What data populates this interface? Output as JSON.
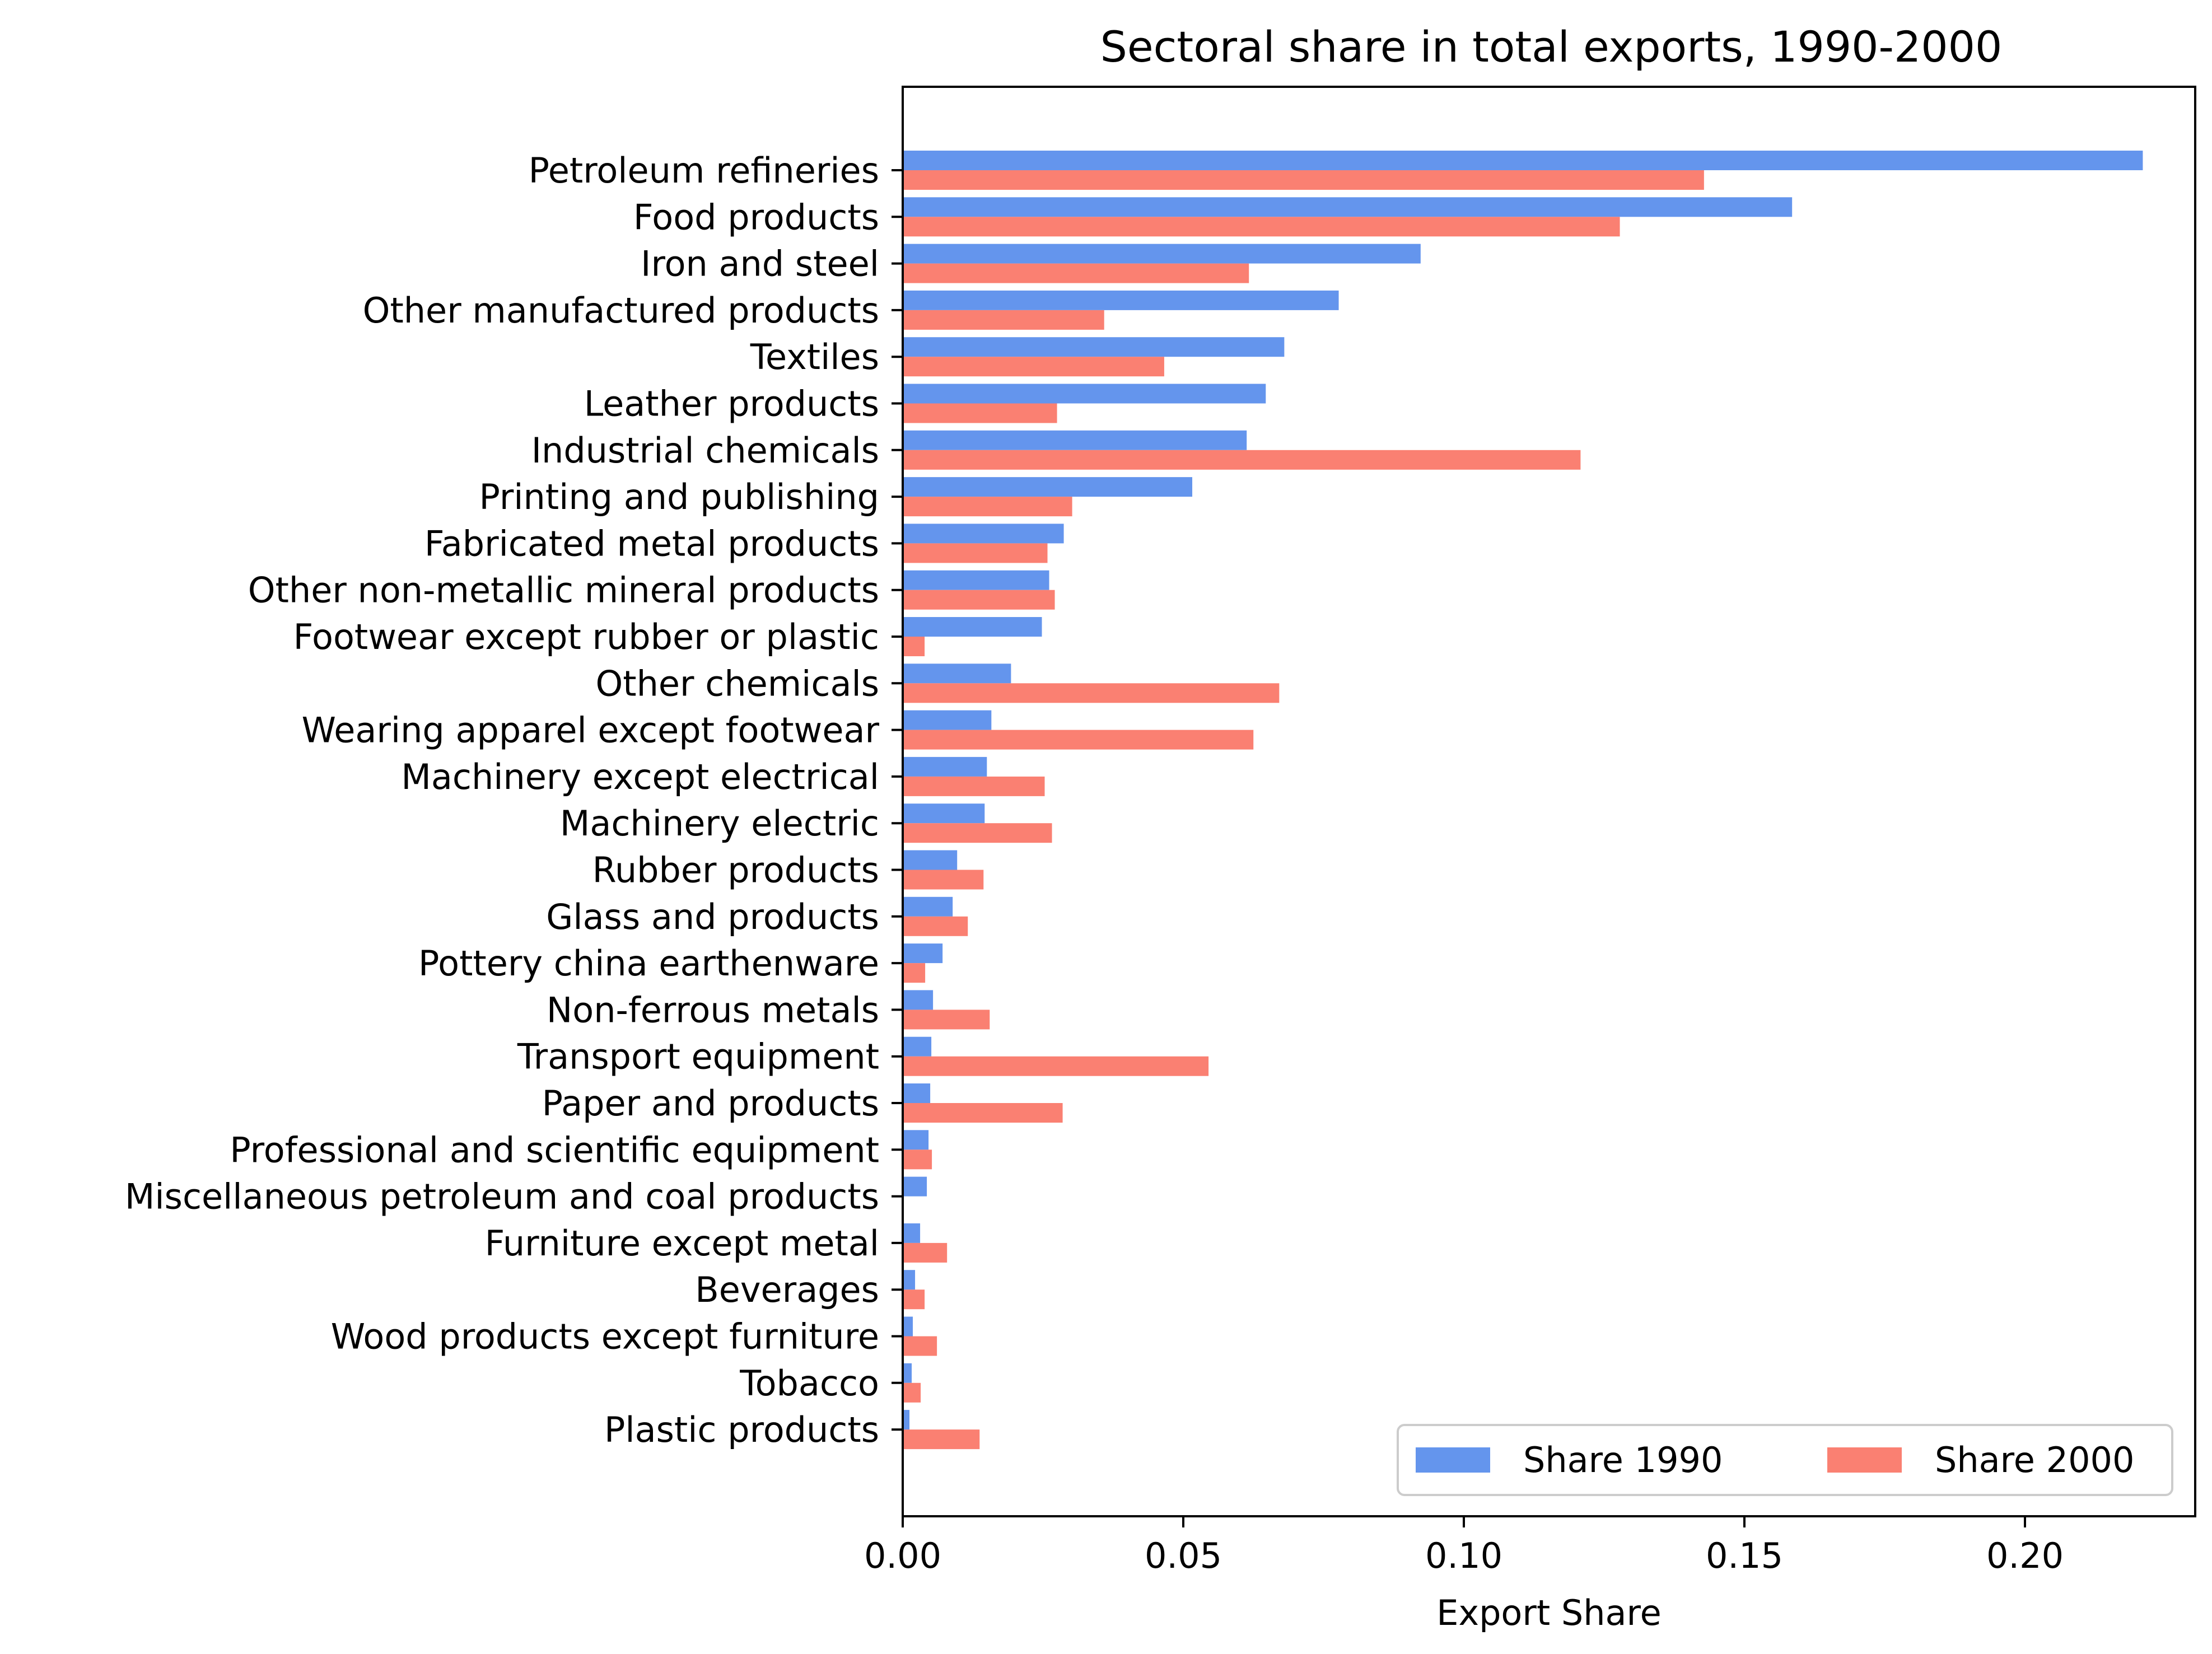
{
  "chart_data": {
    "type": "bar",
    "orientation": "horizontal",
    "title": "Sectoral share in total exports, 1990-2000",
    "xlabel": "Export Share",
    "ylabel": "",
    "xlim": [
      0.0,
      0.2315
    ],
    "xticks": [
      "0.00",
      "0.05",
      "0.10",
      "0.15",
      "0.20"
    ],
    "xtick_values": [
      0.0,
      0.05,
      0.1,
      0.15,
      0.2
    ],
    "grid": false,
    "legend_position": "bottom-right",
    "categories": [
      "Petroleum refineries",
      "Food products",
      "Iron and steel",
      "Other manufactured products",
      "Textiles",
      "Leather products",
      "Industrial chemicals",
      "Printing and publishing",
      "Fabricated metal products",
      "Other non-metallic mineral products",
      "Footwear  except rubber or plastic",
      "Other chemicals",
      "Wearing apparel  except footwear",
      "Machinery  except electrical",
      "Machinery  electric",
      "Rubber products",
      "Glass and products",
      "Pottery  china  earthenware",
      "Non-ferrous metals",
      "Transport equipment",
      "Paper and products",
      "Professional and scientific equipment",
      "Miscellaneous petroleum and coal products",
      "Furniture  except metal",
      "Beverages",
      "Wood products  except furniture",
      "Tobacco",
      "Plastic products"
    ],
    "series": [
      {
        "name": "Share 1990",
        "color": "#6495ED",
        "values": [
          0.221,
          0.1585,
          0.0923,
          0.0777,
          0.068,
          0.0647,
          0.0613,
          0.0516,
          0.0287,
          0.0261,
          0.0248,
          0.0193,
          0.0158,
          0.015,
          0.0146,
          0.0097,
          0.0089,
          0.0071,
          0.0054,
          0.0051,
          0.0049,
          0.0046,
          0.0043,
          0.0031,
          0.0022,
          0.0018,
          0.0016,
          0.0012
        ]
      },
      {
        "name": "Share 2000",
        "color": "#FA8072",
        "values": [
          0.1428,
          0.1278,
          0.0617,
          0.0359,
          0.0466,
          0.0275,
          0.1208,
          0.0302,
          0.0258,
          0.0271,
          0.0039,
          0.0671,
          0.0625,
          0.0253,
          0.0266,
          0.0144,
          0.0116,
          0.004,
          0.0155,
          0.0545,
          0.0285,
          0.0052,
          0.0,
          0.0079,
          0.0039,
          0.0061,
          0.0032,
          0.0137
        ]
      }
    ]
  }
}
